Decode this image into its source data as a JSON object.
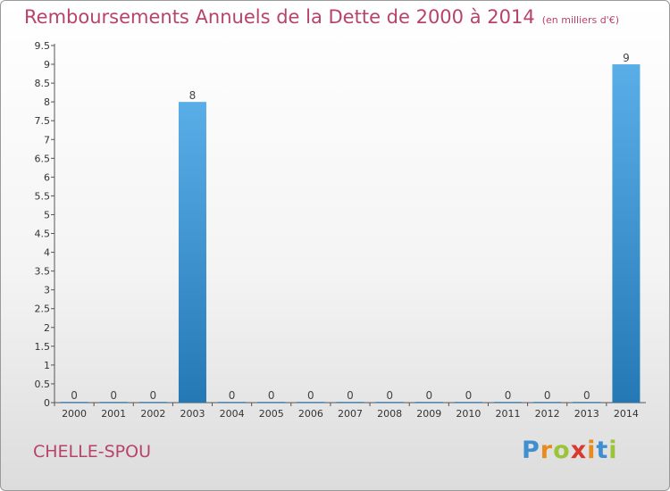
{
  "chart_data": {
    "type": "bar",
    "title": "Remboursements Annuels de la Dette de 2000 à 2014",
    "subtitle": "(en milliers d'€)",
    "categories": [
      "2000",
      "2001",
      "2002",
      "2003",
      "2004",
      "2005",
      "2006",
      "2007",
      "2008",
      "2009",
      "2010",
      "2011",
      "2012",
      "2013",
      "2014"
    ],
    "values": [
      0,
      0,
      0,
      8,
      0,
      0,
      0,
      0,
      0,
      0,
      0,
      0,
      0,
      0,
      9
    ],
    "data_labels": [
      "0",
      "0",
      "0",
      "8",
      "0",
      "0",
      "0",
      "0",
      "0",
      "0",
      "0",
      "0",
      "0",
      "0",
      "9"
    ],
    "ylim": [
      0,
      9.5
    ],
    "yticks": [
      "0",
      "0.5",
      "1",
      "1.5",
      "2",
      "2.5",
      "3",
      "3.5",
      "4",
      "4.5",
      "5",
      "5.5",
      "6",
      "6.5",
      "7",
      "7.5",
      "8",
      "8.5",
      "9",
      "9.5"
    ],
    "xlabel": "",
    "ylabel": "",
    "grid": false,
    "bar_color_top": "#5aaee8",
    "bar_color_bottom": "#2479b5"
  },
  "commune": "CHELLE-SPOU",
  "logo": {
    "letters": [
      "P",
      "r",
      "o",
      "x",
      "i",
      "t",
      "i"
    ],
    "colors": [
      "#3f8fd0",
      "#e78b1f",
      "#9cc43a",
      "#d83a2e",
      "#e78b1f",
      "#3f8fd0",
      "#9cc43a"
    ]
  }
}
